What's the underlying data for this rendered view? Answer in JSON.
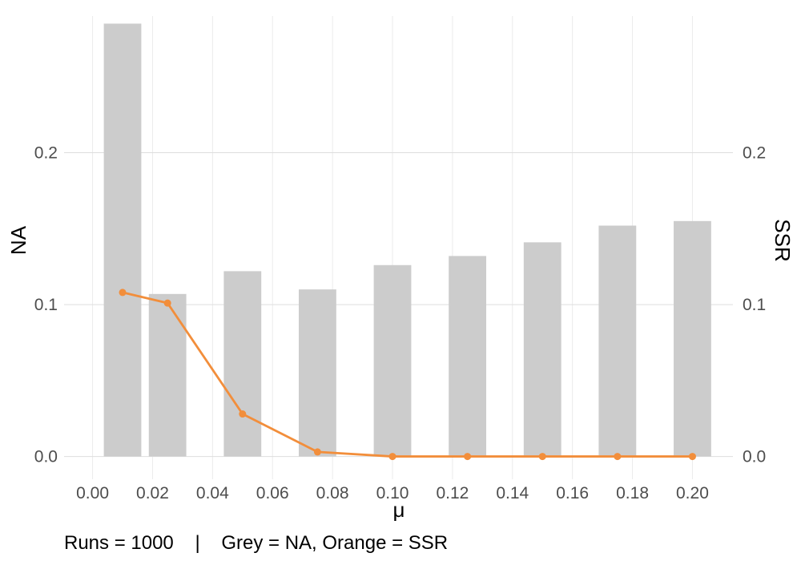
{
  "chart_data": {
    "type": "bar",
    "x": [
      0.01,
      0.025,
      0.05,
      0.075,
      0.1,
      0.125,
      0.15,
      0.175,
      0.2
    ],
    "series": [
      {
        "name": "NA",
        "type": "bar",
        "axis": "left",
        "color": "#cccccc",
        "values": [
          0.285,
          0.107,
          0.122,
          0.11,
          0.126,
          0.132,
          0.141,
          0.152,
          0.155
        ]
      },
      {
        "name": "SSR",
        "type": "line",
        "axis": "right",
        "color": "#f28e3b",
        "values": [
          0.108,
          0.101,
          0.028,
          0.003,
          0.0,
          0.0,
          0.0,
          0.0,
          0.0
        ]
      }
    ],
    "xlabel": "μ",
    "ylabel": "NA",
    "ylabel_right": "SSR",
    "xlim": [
      -0.0095,
      0.2135
    ],
    "ylim": [
      -0.015,
      0.29
    ],
    "x_ticks": [
      "0.00",
      "0.02",
      "0.04",
      "0.06",
      "0.08",
      "0.10",
      "0.12",
      "0.14",
      "0.16",
      "0.18",
      "0.20"
    ],
    "y_ticks": [
      "0.0",
      "0.1",
      "0.2"
    ],
    "y_ticks_right": [
      "0.0",
      "0.1",
      "0.2"
    ],
    "caption": "Runs = 1000    |    Grey = NA, Orange = SSR",
    "grid": true,
    "legend": "none"
  }
}
